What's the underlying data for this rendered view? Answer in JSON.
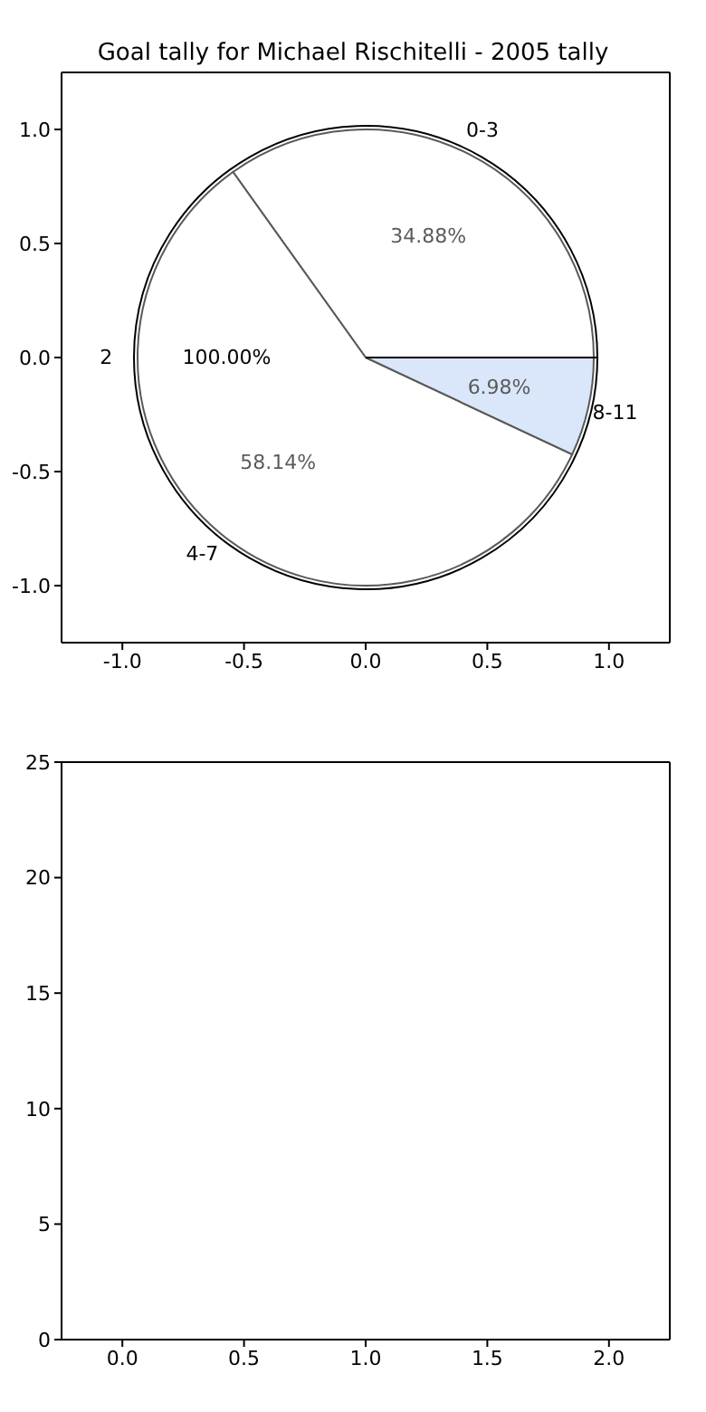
{
  "chart_data": [
    {
      "type": "scatter",
      "title": "Goal tally for Michael Rischitelli - 2005 tally",
      "xlim": [
        -1.25,
        1.25
      ],
      "ylim": [
        -1.25,
        1.25
      ],
      "xticks": [
        {
          "value": -1,
          "label": "-1.0"
        },
        {
          "value": -0.5,
          "label": "-0.5"
        },
        {
          "value": 0,
          "label": "0.0"
        },
        {
          "value": 0.5,
          "label": "0.5"
        },
        {
          "value": 1,
          "label": "1.0"
        }
      ],
      "yticks": [
        {
          "value": -1,
          "label": "-1.0"
        },
        {
          "value": -0.5,
          "label": "-0.5"
        },
        {
          "value": 0,
          "label": "0.0"
        },
        {
          "value": 0.5,
          "label": "0.5"
        },
        {
          "value": 1,
          "label": "1.0"
        }
      ]
    },
    {
      "type": "pie",
      "categories": [
        "2"
      ],
      "values": [
        100
      ],
      "colors": [
        "#ffffff"
      ],
      "value_labels": [
        "100.00%"
      ]
    },
    {
      "type": "pie",
      "categories": [
        "0-3",
        "4-7",
        "8-11"
      ],
      "values": [
        34.88,
        58.14,
        6.98
      ],
      "colors": [
        "#ffffff",
        "#ffffff",
        "#c6dbf7"
      ],
      "value_labels": [
        "34.88%",
        "58.14%",
        "6.98%"
      ]
    },
    {
      "type": "scatter",
      "xlim": [
        -0.25,
        2.25
      ],
      "ylim": [
        0,
        25
      ],
      "xticks": [
        {
          "value": 0,
          "label": "0.0"
        },
        {
          "value": 0.5,
          "label": "0.5"
        },
        {
          "value": 1,
          "label": "1.0"
        },
        {
          "value": 1.5,
          "label": "1.5"
        },
        {
          "value": 2,
          "label": "2.0"
        }
      ],
      "yticks": [
        0,
        5,
        10,
        15,
        20,
        25
      ]
    }
  ]
}
